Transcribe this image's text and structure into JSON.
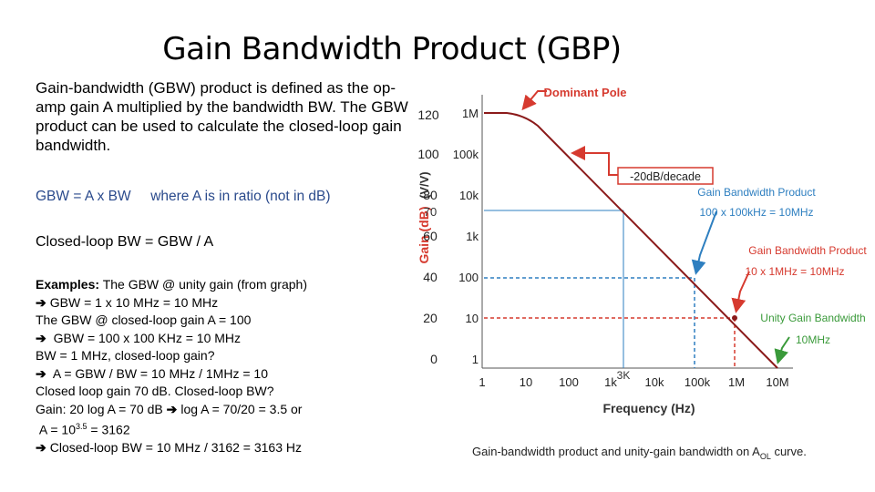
{
  "title": "Gain Bandwidth Product (GBP)",
  "intro": "Gain-bandwidth (GBW) product is defined as the op-amp gain A multiplied by the bandwidth BW. The GBW product can be used to calculate the closed-loop gain bandwidth.",
  "gbw_formula": "GBW = A x BW",
  "gbw_note": "where A is in ratio (not in dB)",
  "closed_loop": "Closed-loop BW = GBW / A",
  "examples": {
    "label": "Examples:",
    "line1": "The GBW @ unity gain (from graph)",
    "line2": "GBW = 1 x 10 MHz = 10 MHz",
    "line3": "The GBW @ closed-loop gain A = 100",
    "line4": "GBW = 100 x 100 KHz = 10 MHz",
    "line5": "BW = 1 MHz, closed-loop gain?",
    "line6": "A = GBW / BW = 10 MHz / 1MHz = 10",
    "line7": "Closed loop gain 70 dB. Closed-loop BW?",
    "line8a": "Gain: 20 log A = 70 dB",
    "line8b": "log A = 70/20 = 3.5 or",
    "line9a": "A = 10",
    "line9sup": "3.5",
    "line9b": "= 3162",
    "line10": "Closed-loop BW = 10 MHz / 3162 = 3163 Hz"
  },
  "figure": {
    "db_ticks": [
      "120",
      "100",
      "80",
      "60",
      "40",
      "20",
      "0"
    ],
    "vv_ticks": [
      "1M",
      "100k",
      "10k",
      "1k",
      "100",
      "10",
      "1"
    ],
    "freq_ticks": [
      "1",
      "10",
      "100",
      "1k",
      "10k",
      "100k",
      "1M",
      "10M"
    ],
    "y_axis_label": "Gain (dB)",
    "y_axis_label2": "(V/V)",
    "x_axis_label": "Frequency (Hz)",
    "marker_70": "70",
    "marker_3k": "3K",
    "ann_dominant_pole": "Dominant Pole",
    "ann_slope": "-20dB/decade",
    "ann_gbp1_title": "Gain Bandwidth Product",
    "ann_gbp1_value": "100 x 100kHz = 10MHz",
    "ann_gbp2_title": "Gain Bandwidth Product",
    "ann_gbp2_value": "10 x 1MHz = 10MHz",
    "ann_unity_title": "Unity Gain Bandwidth",
    "ann_unity_value": "10MHz",
    "caption_a": "Gain-bandwidth product and unity-gain bandwidth on A",
    "caption_sub": "OL",
    "caption_b": " curve.",
    "colors": {
      "curve": "#8b1a1a",
      "red": "#d63a2f",
      "blue": "#2e7fc0",
      "green": "#3a9a3a",
      "grid": "#888888"
    }
  }
}
